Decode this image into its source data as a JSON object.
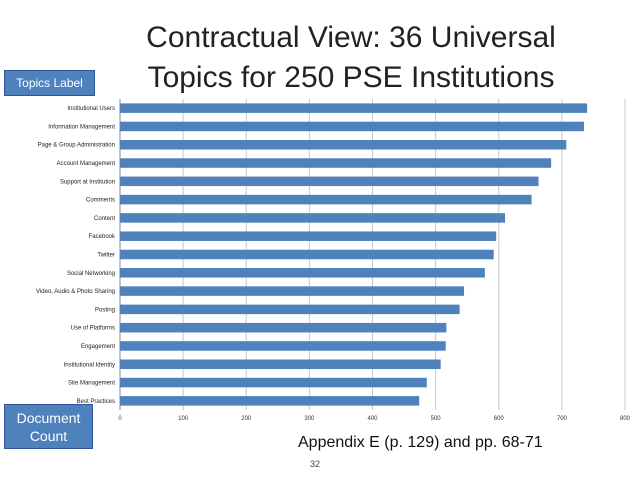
{
  "slide": {
    "title_line1": "Contractual View: 36 Universal",
    "title_line2": "Topics for 250 PSE Institutions",
    "topics_label": "Topics Label",
    "document_count_line1": "Document",
    "document_count_line2": "Count",
    "footer": "Appendix E (p. 129) and pp. 68-71",
    "page_number": "32"
  },
  "colors": {
    "bar": "#4f81bd",
    "label_box": "#4f81bd",
    "grid": "#c8c8c8"
  },
  "chart_data": {
    "type": "bar",
    "orientation": "horizontal",
    "categories": [
      "Institutional Users",
      "Information Management",
      "Page & Group Administration",
      "Account Management",
      "Support at Institution",
      "Comments",
      "Content",
      "Facebook",
      "Twitter",
      "Social Networking",
      "Video, Audio & Photo Sharing",
      "Posting",
      "Use of Platforms",
      "Engagement",
      "Institutional Identity",
      "Site Management",
      "Best Practices"
    ],
    "values": [
      740,
      735,
      707,
      683,
      663,
      652,
      610,
      596,
      592,
      578,
      545,
      538,
      517,
      516,
      508,
      486,
      474
    ],
    "xticks": [
      "0",
      "100",
      "200",
      "300",
      "400",
      "500",
      "600",
      "700",
      "800"
    ],
    "xlim": [
      0,
      800
    ],
    "grid": true
  }
}
